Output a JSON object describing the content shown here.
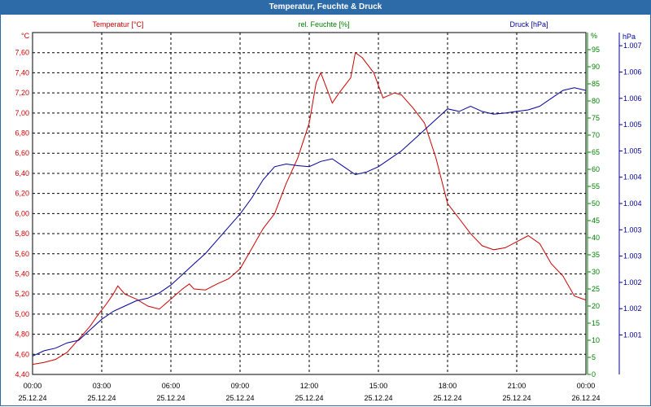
{
  "window": {
    "title": "Temperatur, Feuchte & Druck"
  },
  "colors": {
    "temp": "#cc0000",
    "hum": "#008000",
    "press": "#000099",
    "grid": "#000000",
    "titlebar": "#2c6aa8"
  },
  "chart_data": {
    "type": "line",
    "title": "Temperatur, Feuchte & Druck",
    "legend": [
      "Temperatur [°C]",
      "rel. Feuchte [%]",
      "Druck [hPa]"
    ],
    "x_tick_labels": [
      {
        "time": "00:00",
        "date": "25.12.24"
      },
      {
        "time": "03:00",
        "date": "25.12.24"
      },
      {
        "time": "06:00",
        "date": "25.12.24"
      },
      {
        "time": "09:00",
        "date": "25.12.24"
      },
      {
        "time": "12:00",
        "date": "25.12.24"
      },
      {
        "time": "15:00",
        "date": "25.12.24"
      },
      {
        "time": "18:00",
        "date": "25.12.24"
      },
      {
        "time": "21:00",
        "date": "25.12.24"
      },
      {
        "time": "00:00",
        "date": "26.12.24"
      }
    ],
    "x_range_hours": [
      0,
      24
    ],
    "left_axis": {
      "unit": "°C",
      "range": [
        4.4,
        7.8
      ],
      "ticks": [
        "7,60",
        "7,40",
        "7,20",
        "7,00",
        "6,80",
        "6,60",
        "6,40",
        "6,20",
        "6,00",
        "5,80",
        "5,60",
        "5,40",
        "5,20",
        "5,00",
        "4,80",
        "4,60",
        "4,40"
      ],
      "tick_values": [
        7.6,
        7.4,
        7.2,
        7.0,
        6.8,
        6.6,
        6.4,
        6.2,
        6.0,
        5.8,
        5.6,
        5.4,
        5.2,
        5.0,
        4.8,
        4.6,
        4.4
      ]
    },
    "humidity_axis": {
      "unit": "%",
      "range": [
        0,
        100
      ],
      "ticks": [
        "95",
        "90",
        "85",
        "80",
        "75",
        "70",
        "65",
        "60",
        "55",
        "50",
        "45",
        "40",
        "35",
        "30",
        "25",
        "20",
        "15",
        "10",
        "5",
        "0"
      ],
      "tick_values": [
        95,
        90,
        85,
        80,
        75,
        70,
        65,
        60,
        55,
        50,
        45,
        40,
        35,
        30,
        25,
        20,
        15,
        10,
        5,
        0
      ]
    },
    "pressure_axis": {
      "unit": "hPa",
      "range": [
        1000.75,
        1007.25
      ],
      "ticks": [
        "1.007",
        "1.006",
        "1.006",
        "1.005",
        "1.005",
        "1.004",
        "1.004",
        "1.003",
        "1.003",
        "1.002",
        "1.002",
        "1.001"
      ],
      "tick_values": [
        1007.0,
        1006.5,
        1006.0,
        1005.5,
        1005.0,
        1004.5,
        1004.0,
        1003.5,
        1003.0,
        1002.5,
        1002.0,
        1001.5
      ]
    },
    "series": [
      {
        "name": "Temperatur [°C]",
        "axis": "left",
        "points": [
          [
            0,
            4.5
          ],
          [
            0.5,
            4.52
          ],
          [
            1,
            4.55
          ],
          [
            1.5,
            4.62
          ],
          [
            2,
            4.75
          ],
          [
            2.5,
            4.88
          ],
          [
            2.8,
            4.98
          ],
          [
            3.2,
            5.1
          ],
          [
            3.5,
            5.2
          ],
          [
            3.7,
            5.28
          ],
          [
            4,
            5.2
          ],
          [
            4.5,
            5.15
          ],
          [
            5,
            5.08
          ],
          [
            5.5,
            5.05
          ],
          [
            6,
            5.15
          ],
          [
            6.5,
            5.25
          ],
          [
            6.8,
            5.3
          ],
          [
            7,
            5.25
          ],
          [
            7.5,
            5.24
          ],
          [
            8,
            5.3
          ],
          [
            8.5,
            5.35
          ],
          [
            9,
            5.45
          ],
          [
            9.5,
            5.65
          ],
          [
            10,
            5.85
          ],
          [
            10.5,
            6.0
          ],
          [
            11,
            6.3
          ],
          [
            11.5,
            6.55
          ],
          [
            12,
            6.9
          ],
          [
            12.3,
            7.3
          ],
          [
            12.5,
            7.4
          ],
          [
            13,
            7.1
          ],
          [
            13.3,
            7.2
          ],
          [
            13.8,
            7.35
          ],
          [
            14,
            7.6
          ],
          [
            14.3,
            7.55
          ],
          [
            14.8,
            7.4
          ],
          [
            15.2,
            7.15
          ],
          [
            15.7,
            7.2
          ],
          [
            16,
            7.18
          ],
          [
            16.5,
            7.05
          ],
          [
            17,
            6.9
          ],
          [
            17.5,
            6.55
          ],
          [
            18,
            6.1
          ],
          [
            18.5,
            5.95
          ],
          [
            19,
            5.8
          ],
          [
            19.5,
            5.68
          ],
          [
            20,
            5.64
          ],
          [
            20.5,
            5.66
          ],
          [
            21,
            5.72
          ],
          [
            21.5,
            5.78
          ],
          [
            22,
            5.7
          ],
          [
            22.5,
            5.5
          ],
          [
            23,
            5.38
          ],
          [
            23.5,
            5.18
          ],
          [
            24,
            5.14
          ]
        ]
      },
      {
        "name": "Druck [hPa]",
        "axis": "pressure",
        "points": [
          [
            0,
            1001.1
          ],
          [
            0.5,
            1001.2
          ],
          [
            1,
            1001.25
          ],
          [
            1.5,
            1001.35
          ],
          [
            2,
            1001.4
          ],
          [
            2.5,
            1001.6
          ],
          [
            3,
            1001.8
          ],
          [
            3.5,
            1001.95
          ],
          [
            4,
            1002.05
          ],
          [
            4.5,
            1002.15
          ],
          [
            5,
            1002.2
          ],
          [
            5.5,
            1002.3
          ],
          [
            6,
            1002.45
          ],
          [
            6.5,
            1002.65
          ],
          [
            7,
            1002.85
          ],
          [
            7.5,
            1003.05
          ],
          [
            8,
            1003.3
          ],
          [
            8.5,
            1003.55
          ],
          [
            9,
            1003.8
          ],
          [
            9.5,
            1004.1
          ],
          [
            10,
            1004.45
          ],
          [
            10.5,
            1004.7
          ],
          [
            11,
            1004.75
          ],
          [
            11.5,
            1004.72
          ],
          [
            12,
            1004.7
          ],
          [
            12.5,
            1004.8
          ],
          [
            13,
            1004.85
          ],
          [
            13.5,
            1004.7
          ],
          [
            14,
            1004.55
          ],
          [
            14.5,
            1004.6
          ],
          [
            15,
            1004.7
          ],
          [
            15.5,
            1004.85
          ],
          [
            16,
            1005.0
          ],
          [
            16.5,
            1005.2
          ],
          [
            17,
            1005.4
          ],
          [
            17.5,
            1005.6
          ],
          [
            18,
            1005.8
          ],
          [
            18.5,
            1005.75
          ],
          [
            19,
            1005.85
          ],
          [
            19.5,
            1005.75
          ],
          [
            20,
            1005.7
          ],
          [
            20.5,
            1005.72
          ],
          [
            21,
            1005.75
          ],
          [
            21.5,
            1005.78
          ],
          [
            22,
            1005.85
          ],
          [
            22.5,
            1006.0
          ],
          [
            23,
            1006.15
          ],
          [
            23.5,
            1006.2
          ],
          [
            24,
            1006.15
          ]
        ]
      }
    ]
  }
}
